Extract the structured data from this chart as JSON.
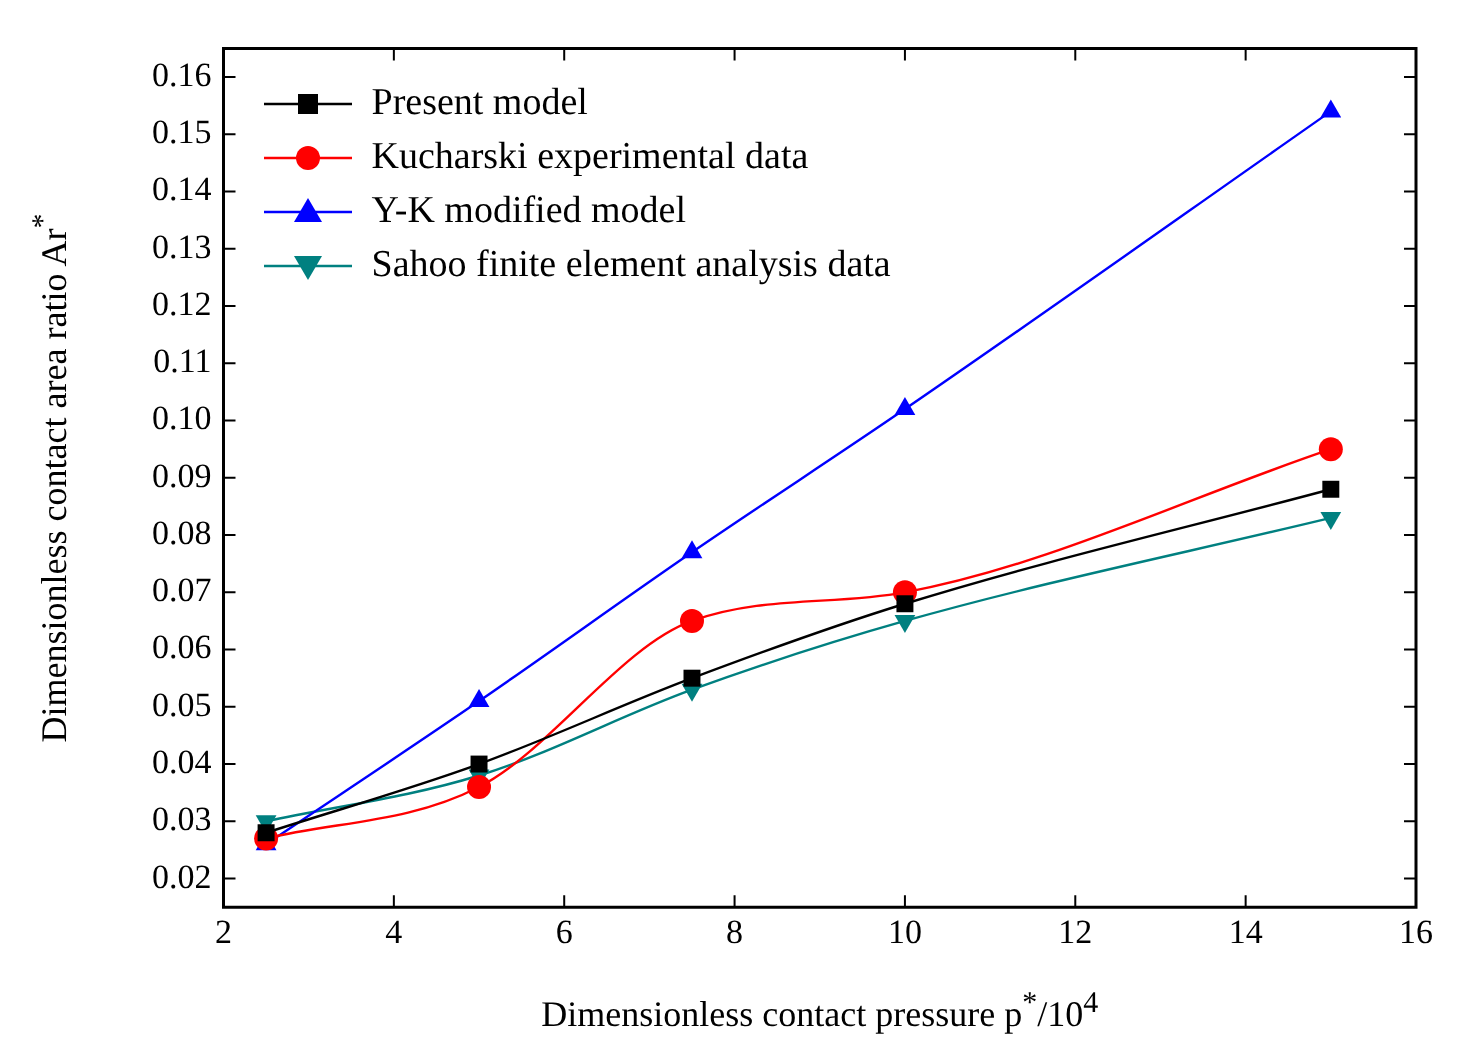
{
  "chart_data": {
    "type": "line",
    "xlabel": "Dimensionless contact pressure p$^{*}$/10$^{4}$",
    "ylabel": "Dimensionless contact area ratio Ar$^{*}$",
    "x": [
      2.5,
      5,
      7.5,
      10,
      15
    ],
    "series": [
      {
        "name": "Present model",
        "color": "#000000",
        "marker": "square",
        "values": [
          0.028,
          0.04,
          0.055,
          0.068,
          0.088
        ]
      },
      {
        "name": "Kucharski experimental data",
        "color": "#ff0000",
        "marker": "circle",
        "values": [
          0.027,
          0.036,
          0.065,
          0.07,
          0.095
        ]
      },
      {
        "name": "Y-K modified model",
        "color": "#0000ff",
        "marker": "triangle",
        "values": [
          0.026,
          0.051,
          0.077,
          0.102,
          0.154
        ]
      },
      {
        "name": "Sahoo finite element analysis data",
        "color": "#008080",
        "marker": "triangle-down",
        "values": [
          0.03,
          0.038,
          0.053,
          0.065,
          0.083
        ]
      }
    ],
    "xlim": [
      2,
      16
    ],
    "xticks": [
      2,
      4,
      6,
      8,
      10,
      12,
      14,
      16
    ],
    "ylim": [
      0.015,
      0.165
    ],
    "yticks": [
      0.02,
      0.03,
      0.04,
      0.05,
      0.06,
      0.07,
      0.08,
      0.09,
      {
        "value": 0.1,
        "label": "0.10"
      },
      0.11,
      0.12,
      0.13,
      0.14,
      0.15,
      0.16
    ],
    "grid": false,
    "legend": "top left",
    "line_style": "solid"
  }
}
